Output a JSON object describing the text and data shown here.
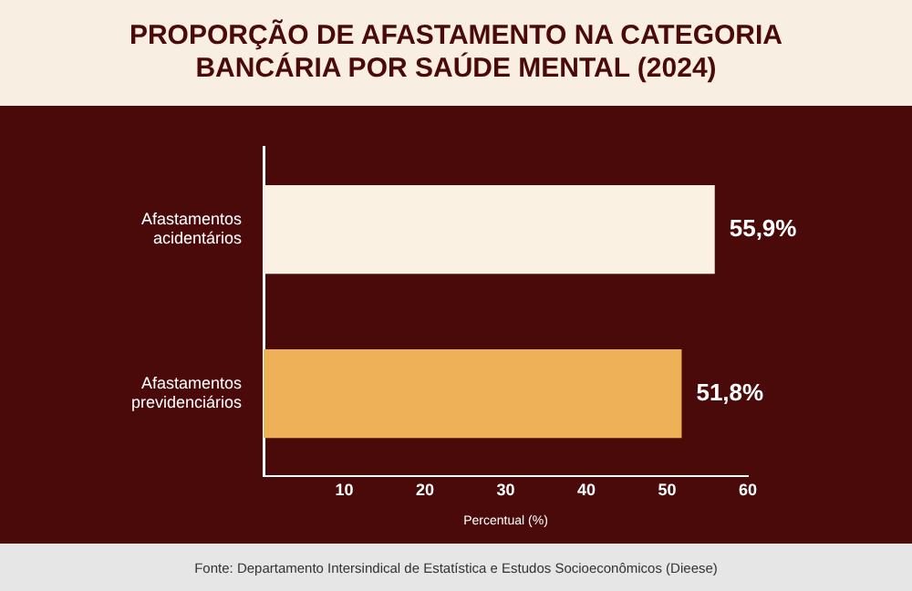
{
  "chart_data": {
    "type": "bar",
    "orientation": "horizontal",
    "title": "PROPORÇÃO DE AFASTAMENTO NA CATEGORIA BANCÁRIA POR SAÚDE MENTAL (2024)",
    "xlabel": "Percentual (%)",
    "categories": [
      "Afastamentos acidentários",
      "Afastamentos previdenciários"
    ],
    "values": [
      55.9,
      51.8
    ],
    "colors": [
      "#fbf1e3",
      "#eeb158"
    ],
    "value_labels": [
      "55,9%",
      "51,8%"
    ],
    "xlim": [
      0,
      60
    ],
    "xticks": [
      10,
      20,
      30,
      40,
      50,
      60
    ],
    "grid": false,
    "legend": false,
    "annotations": [
      "Fonte: Departamento Intersindical de Estatística e Estudos Socioeconômicos (Dieese)"
    ]
  }
}
